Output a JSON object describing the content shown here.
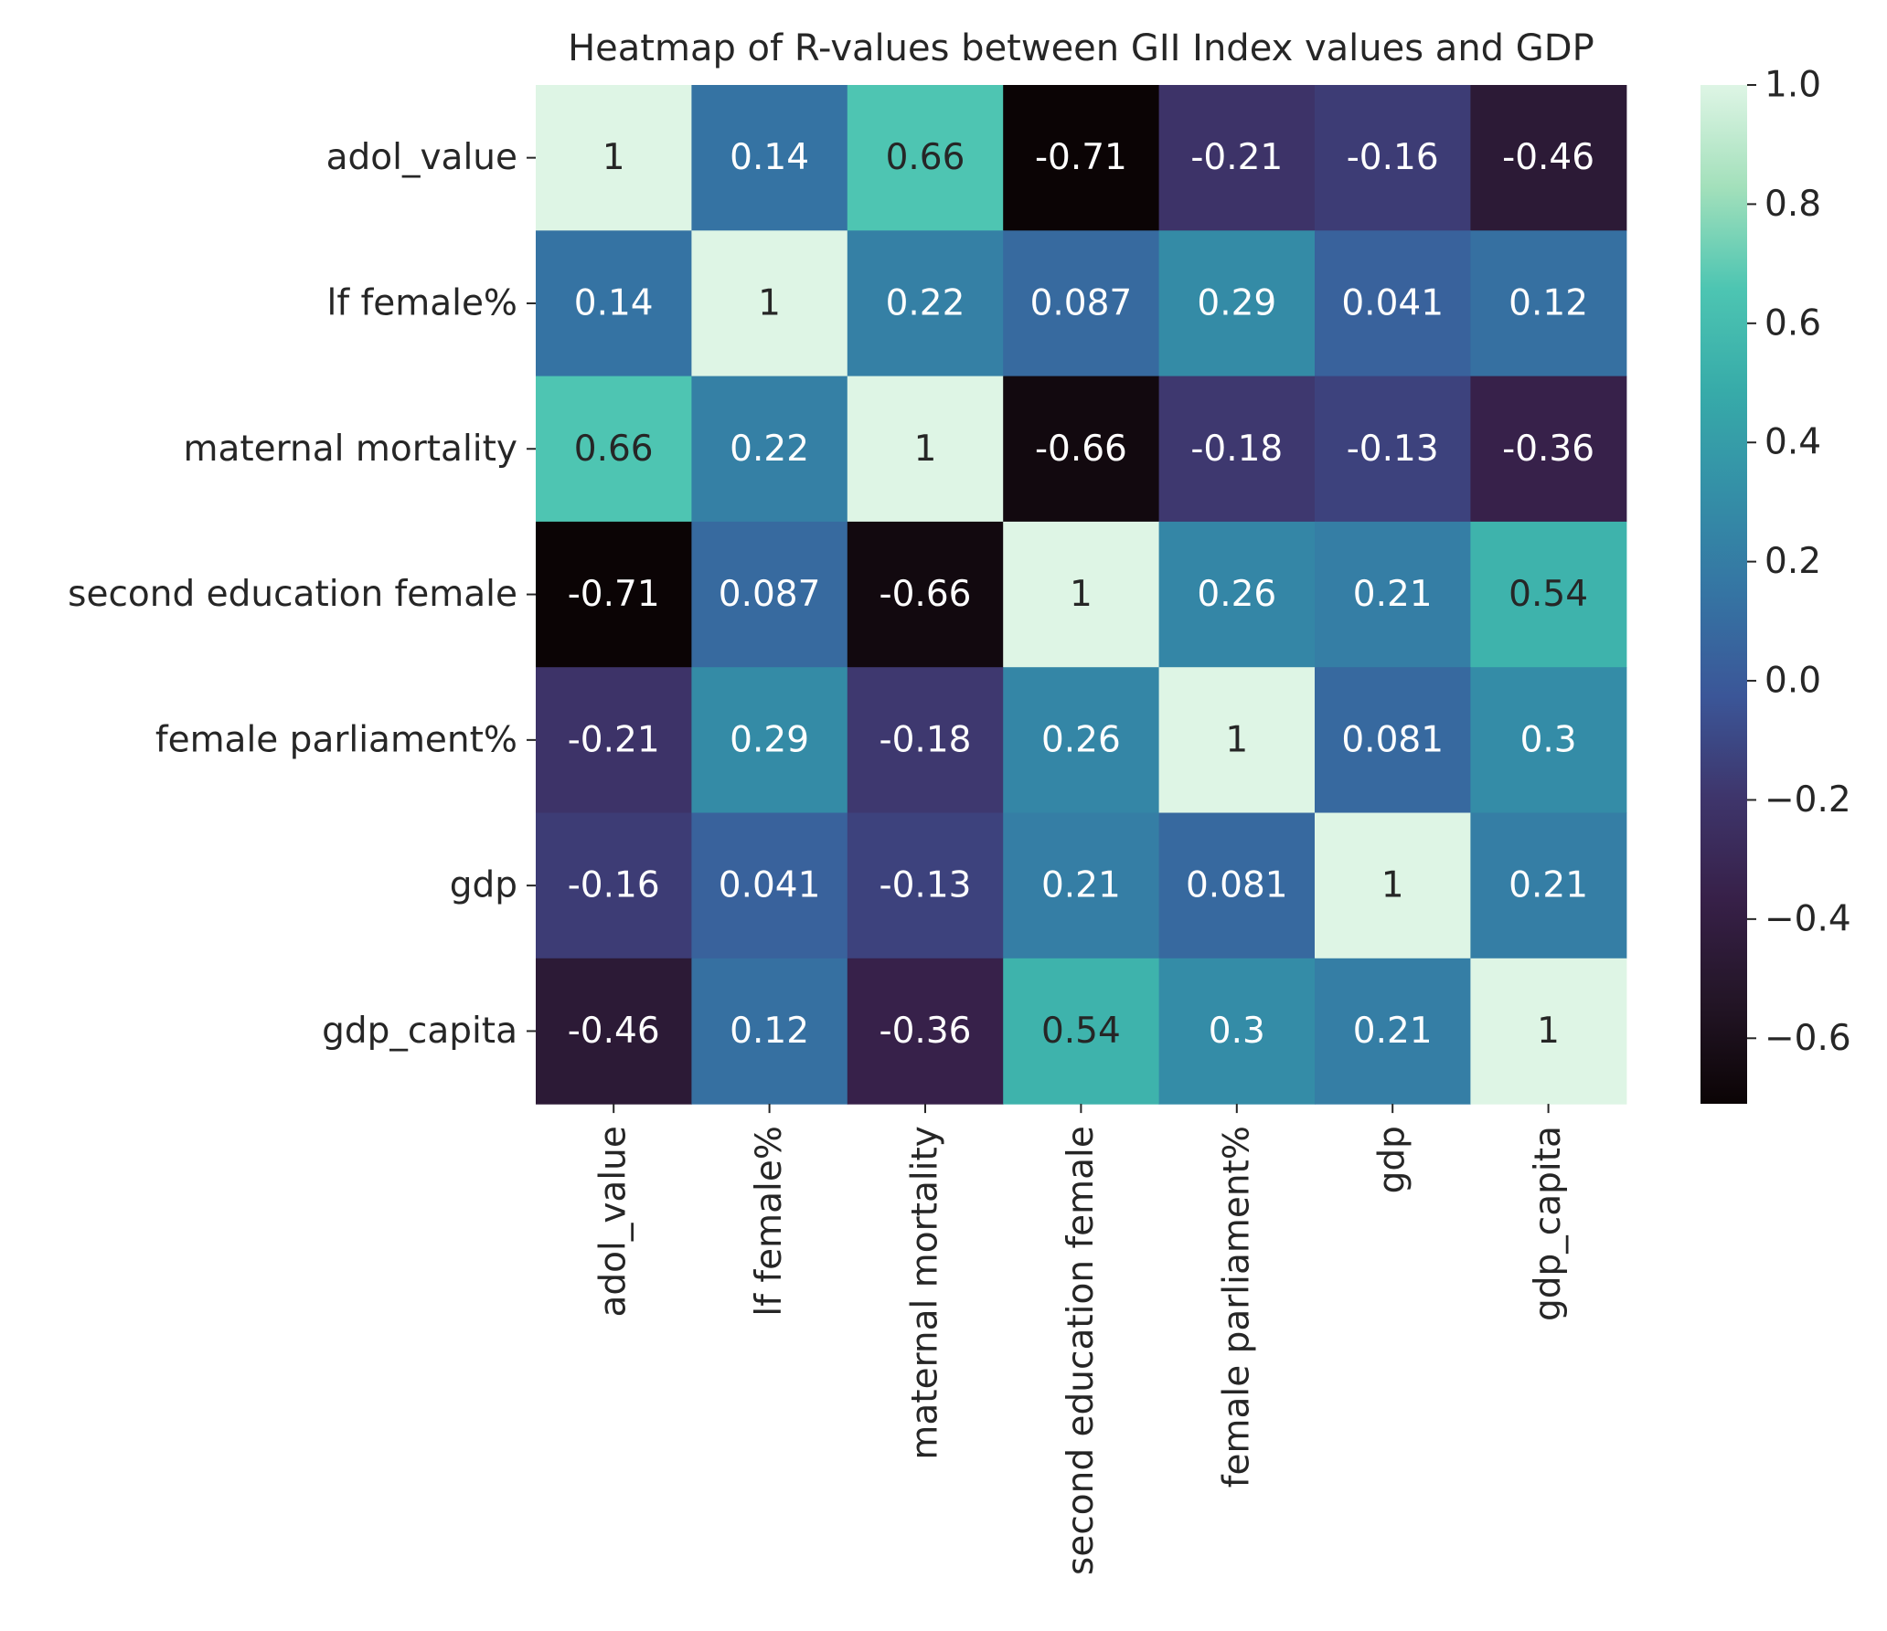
{
  "chart_data": {
    "type": "heatmap",
    "title": "Heatmap of R-values between GII Index values and GDP",
    "xlabel": "",
    "ylabel": "",
    "row_labels": [
      "adol_value",
      "lf female%",
      "maternal mortality",
      "second education female",
      "female parliament%",
      "gdp",
      "gdp_capita"
    ],
    "col_labels": [
      "adol_value",
      "lf female%",
      "maternal mortality",
      "second education female",
      "female parliament%",
      "gdp",
      "gdp_capita"
    ],
    "values": [
      [
        1,
        0.14,
        0.66,
        -0.71,
        -0.21,
        -0.16,
        -0.46
      ],
      [
        0.14,
        1,
        0.22,
        0.087,
        0.29,
        0.041,
        0.12
      ],
      [
        0.66,
        0.22,
        1,
        -0.66,
        -0.18,
        -0.13,
        -0.36
      ],
      [
        -0.71,
        0.087,
        -0.66,
        1,
        0.26,
        0.21,
        0.54
      ],
      [
        -0.21,
        0.29,
        -0.18,
        0.26,
        1,
        0.081,
        0.3
      ],
      [
        -0.16,
        0.041,
        -0.13,
        0.21,
        0.081,
        1,
        0.21
      ],
      [
        -0.46,
        0.12,
        -0.36,
        0.54,
        0.3,
        0.21,
        1
      ]
    ],
    "annotations": [
      [
        "1",
        "0.14",
        "0.66",
        "-0.71",
        "-0.21",
        "-0.16",
        "-0.46"
      ],
      [
        "0.14",
        "1",
        "0.22",
        "0.087",
        "0.29",
        "0.041",
        "0.12"
      ],
      [
        "0.66",
        "0.22",
        "1",
        "-0.66",
        "-0.18",
        "-0.13",
        "-0.36"
      ],
      [
        "-0.71",
        "0.087",
        "-0.66",
        "1",
        "0.26",
        "0.21",
        "0.54"
      ],
      [
        "-0.21",
        "0.29",
        "-0.18",
        "0.26",
        "1",
        "0.081",
        "0.3"
      ],
      [
        "-0.16",
        "0.041",
        "-0.13",
        "0.21",
        "0.081",
        "1",
        "0.21"
      ],
      [
        "-0.46",
        "0.12",
        "-0.36",
        "0.54",
        "0.3",
        "0.21",
        "1"
      ]
    ],
    "colormap": "mako",
    "vmin": -0.71,
    "vmax": 1.0,
    "colorbar": {
      "ticks": [
        1.0,
        0.8,
        0.6,
        0.4,
        0.2,
        0.0,
        -0.2,
        -0.4,
        -0.6
      ],
      "tick_labels": [
        "1.0",
        "0.8",
        "0.6",
        "0.4",
        "0.2",
        "0.0",
        "−0.2",
        "−0.4",
        "−0.6"
      ]
    },
    "colormap_stops": [
      [
        0.0,
        "#0b0405"
      ],
      [
        0.1,
        "#231526"
      ],
      [
        0.2,
        "#372048"
      ],
      [
        0.3,
        "#3e356b"
      ],
      [
        0.4,
        "#3b5698"
      ],
      [
        0.5,
        "#3574a3"
      ],
      [
        0.6,
        "#348fa7"
      ],
      [
        0.7,
        "#37aba9"
      ],
      [
        0.8,
        "#4dc5b2"
      ],
      [
        0.9,
        "#a3e0bb"
      ],
      [
        1.0,
        "#def5e5"
      ]
    ],
    "text_colors": {
      "light": "#ffffff",
      "dark": "#262626"
    }
  }
}
